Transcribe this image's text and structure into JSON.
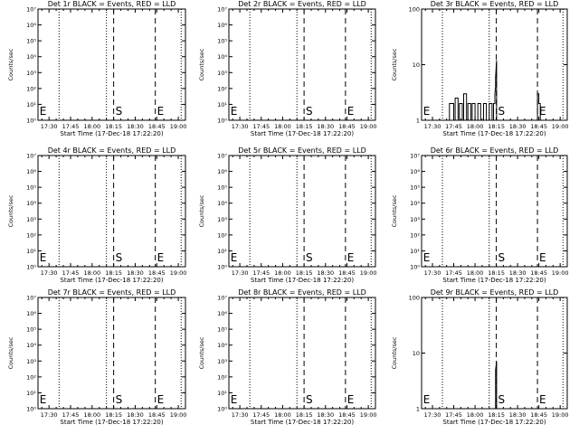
{
  "figure": {
    "x_ticks": [
      "17:30",
      "17:45",
      "18:00",
      "18:15",
      "18:30",
      "18:45",
      "19:00"
    ],
    "x_tick_minutes": [
      30,
      45,
      60,
      75,
      90,
      105,
      120
    ],
    "x_range_minutes": [
      22.33,
      125
    ],
    "xlabel": "Start Time (17-Dec-18 17:22:20)",
    "ylabel": "Counts/sec",
    "dotted_lines_minutes": [
      37,
      70,
      122
    ],
    "dashed_lines_minutes": [
      75,
      104
    ],
    "markers": [
      {
        "label": "E",
        "minute": 22.8
      },
      {
        "label": "S",
        "minute": 75.6
      },
      {
        "label": "E",
        "minute": 104.6
      }
    ],
    "colors": {
      "events": "#000000",
      "lld": "#ff0000",
      "background": "#ffffff"
    }
  },
  "chart_data": [
    {
      "type": "line",
      "title": "Det 1r BLACK = Events, RED = LLD",
      "log_y": true,
      "ylim": [
        1,
        10000000
      ],
      "yticks": [
        {
          "v": 1,
          "t": "10⁰"
        },
        {
          "v": 10,
          "t": "10¹"
        },
        {
          "v": 100,
          "t": "10²"
        },
        {
          "v": 1000,
          "t": "10³"
        },
        {
          "v": 10000,
          "t": "10⁴"
        },
        {
          "v": 100000,
          "t": "10⁵"
        },
        {
          "v": 1000000,
          "t": "10⁶"
        },
        {
          "v": 10000000,
          "t": "10⁷"
        }
      ],
      "series": []
    },
    {
      "type": "line",
      "title": "Det 2r BLACK = Events, RED = LLD",
      "log_y": true,
      "ylim": [
        1,
        10000000
      ],
      "yticks": [
        {
          "v": 1,
          "t": "10⁰"
        },
        {
          "v": 10,
          "t": "10¹"
        },
        {
          "v": 100,
          "t": "10²"
        },
        {
          "v": 1000,
          "t": "10³"
        },
        {
          "v": 10000,
          "t": "10⁴"
        },
        {
          "v": 100000,
          "t": "10⁵"
        },
        {
          "v": 1000000,
          "t": "10⁶"
        },
        {
          "v": 10000000,
          "t": "10⁷"
        }
      ],
      "series": []
    },
    {
      "type": "line",
      "title": "Det 3r BLACK = Events, RED = LLD",
      "log_y": true,
      "ylim": [
        1,
        100
      ],
      "yticks": [
        {
          "v": 1,
          "t": "1"
        },
        {
          "v": 10,
          "t": "10"
        },
        {
          "v": 100,
          "t": "100"
        }
      ],
      "series": [
        {
          "color": "#000000",
          "x": [
            42,
            42,
            45,
            45,
            46,
            46,
            48,
            48,
            49,
            49,
            51,
            51,
            52,
            52,
            54,
            54,
            55,
            55,
            57,
            57,
            58,
            58,
            60,
            60,
            62,
            62,
            64,
            64,
            66,
            66,
            68,
            68,
            70,
            70,
            72,
            72,
            73,
            73,
            74,
            74,
            74.5,
            74.5,
            75.2,
            75.2,
            104,
            104,
            105,
            105,
            106,
            106
          ],
          "y": [
            1,
            2,
            2,
            1,
            1,
            2.5,
            2.5,
            1,
            1,
            2,
            2,
            1,
            1,
            3,
            3,
            1,
            1,
            2,
            2,
            1,
            1,
            2,
            2,
            1,
            1,
            2,
            2,
            1,
            1,
            2,
            2,
            1,
            1,
            2,
            2,
            1,
            1,
            2,
            2,
            3,
            4,
            6,
            12,
            1,
            1,
            3,
            3,
            2,
            2,
            1
          ]
        }
      ]
    },
    {
      "type": "line",
      "title": "Det 4r BLACK = Events, RED = LLD",
      "log_y": true,
      "ylim": [
        1,
        10000000
      ],
      "yticks": [
        {
          "v": 1,
          "t": "10⁰"
        },
        {
          "v": 10,
          "t": "10¹"
        },
        {
          "v": 100,
          "t": "10²"
        },
        {
          "v": 1000,
          "t": "10³"
        },
        {
          "v": 10000,
          "t": "10⁴"
        },
        {
          "v": 100000,
          "t": "10⁵"
        },
        {
          "v": 1000000,
          "t": "10⁶"
        },
        {
          "v": 10000000,
          "t": "10⁷"
        }
      ],
      "series": []
    },
    {
      "type": "line",
      "title": "Det 5r BLACK = Events, RED = LLD",
      "log_y": true,
      "ylim": [
        1,
        10000000
      ],
      "yticks": [
        {
          "v": 1,
          "t": "10⁰"
        },
        {
          "v": 10,
          "t": "10¹"
        },
        {
          "v": 100,
          "t": "10²"
        },
        {
          "v": 1000,
          "t": "10³"
        },
        {
          "v": 10000,
          "t": "10⁴"
        },
        {
          "v": 100000,
          "t": "10⁵"
        },
        {
          "v": 1000000,
          "t": "10⁶"
        },
        {
          "v": 10000000,
          "t": "10⁷"
        }
      ],
      "series": []
    },
    {
      "type": "line",
      "title": "Det 6r BLACK = Events, RED = LLD",
      "log_y": true,
      "ylim": [
        1,
        10000000
      ],
      "yticks": [
        {
          "v": 1,
          "t": "10⁰"
        },
        {
          "v": 10,
          "t": "10¹"
        },
        {
          "v": 100,
          "t": "10²"
        },
        {
          "v": 1000,
          "t": "10³"
        },
        {
          "v": 10000,
          "t": "10⁴"
        },
        {
          "v": 100000,
          "t": "10⁵"
        },
        {
          "v": 1000000,
          "t": "10⁶"
        },
        {
          "v": 10000000,
          "t": "10⁷"
        }
      ],
      "series": []
    },
    {
      "type": "line",
      "title": "Det 7r BLACK = Events, RED = LLD",
      "log_y": true,
      "ylim": [
        1,
        10000000
      ],
      "yticks": [
        {
          "v": 1,
          "t": "10⁰"
        },
        {
          "v": 10,
          "t": "10¹"
        },
        {
          "v": 100,
          "t": "10²"
        },
        {
          "v": 1000,
          "t": "10³"
        },
        {
          "v": 10000,
          "t": "10⁴"
        },
        {
          "v": 100000,
          "t": "10⁵"
        },
        {
          "v": 1000000,
          "t": "10⁶"
        },
        {
          "v": 10000000,
          "t": "10⁷"
        }
      ],
      "series": []
    },
    {
      "type": "line",
      "title": "Det 8r BLACK = Events, RED = LLD",
      "log_y": true,
      "ylim": [
        1,
        10000000
      ],
      "yticks": [
        {
          "v": 1,
          "t": "10⁰"
        },
        {
          "v": 10,
          "t": "10¹"
        },
        {
          "v": 100,
          "t": "10²"
        },
        {
          "v": 1000,
          "t": "10³"
        },
        {
          "v": 10000,
          "t": "10⁴"
        },
        {
          "v": 100000,
          "t": "10⁵"
        },
        {
          "v": 1000000,
          "t": "10⁶"
        },
        {
          "v": 10000000,
          "t": "10⁷"
        }
      ],
      "series": []
    },
    {
      "type": "line",
      "title": "Det 9r BLACK = Events, RED = LLD",
      "log_y": true,
      "ylim": [
        1,
        100
      ],
      "yticks": [
        {
          "v": 1,
          "t": "1"
        },
        {
          "v": 10,
          "t": "10"
        },
        {
          "v": 100,
          "t": "100"
        }
      ],
      "series": [
        {
          "color": "#000000",
          "x": [
            74.5,
            74.5,
            75.2,
            75.2
          ],
          "y": [
            1,
            5,
            7,
            1
          ]
        }
      ]
    }
  ]
}
